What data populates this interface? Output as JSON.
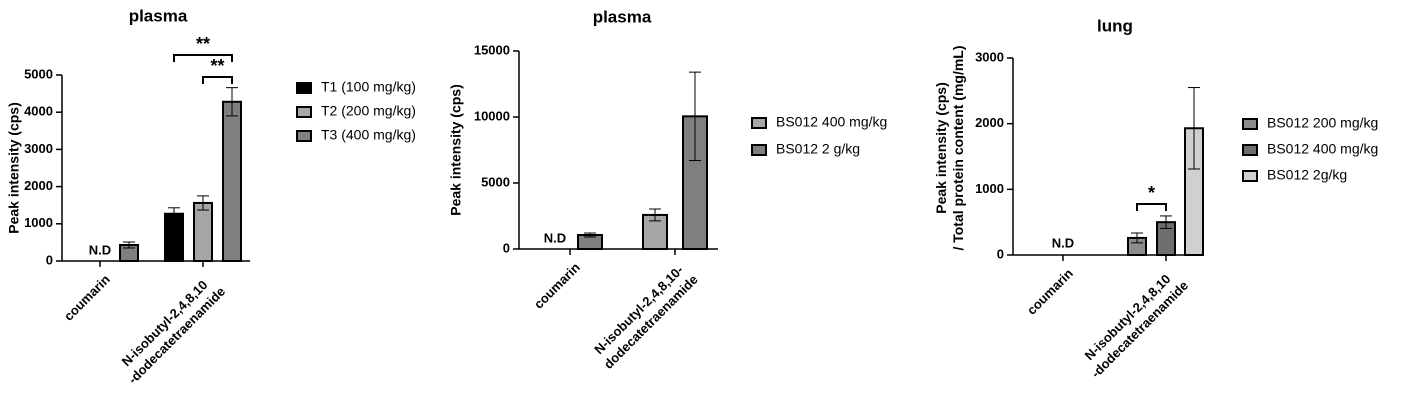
{
  "chart_data": [
    {
      "type": "bar",
      "title": "plasma",
      "y_label": "Peak intensity (cps)",
      "categories": [
        "coumarin",
        "N-isobutyl-2,4,8,10\n-dodecatetraenamide"
      ],
      "series": [
        {
          "name": "T1 (100 mg/kg)",
          "color": "#000000",
          "values": [
            null,
            1270
          ],
          "errors": [
            null,
            160
          ]
        },
        {
          "name": "T2 (200 mg/kg)",
          "color": "#a6a6a6",
          "values": [
            null,
            1560
          ],
          "errors": [
            null,
            190
          ]
        },
        {
          "name": "T3 (400 mg/kg)",
          "color": "#7f7f7f",
          "values": [
            430,
            4280
          ],
          "errors": [
            80,
            380
          ]
        }
      ],
      "ylim": [
        0,
        5000
      ],
      "yticks": [
        0,
        1000,
        2000,
        3000,
        4000,
        5000
      ],
      "annotations": [
        "N.D",
        "**",
        "**"
      ]
    },
    {
      "type": "bar",
      "title": "plasma",
      "y_label": "Peak intensity (cps)",
      "categories": [
        "coumarin",
        "N-isobutyl-2,4,8,10-\ndodecatetraenamide"
      ],
      "series": [
        {
          "name": "BS012 400 mg/kg",
          "color": "#a6a6a6",
          "values": [
            null,
            2580
          ],
          "errors": [
            null,
            450
          ]
        },
        {
          "name": "BS012 2 g/kg",
          "color": "#7f7f7f",
          "values": [
            1060,
            10050
          ],
          "errors": [
            150,
            3350
          ]
        }
      ],
      "ylim": [
        0,
        15000
      ],
      "yticks": [
        0,
        5000,
        10000,
        15000
      ],
      "annotations": [
        "N.D"
      ]
    },
    {
      "type": "bar",
      "title": "lung",
      "y_label": "Peak intensity (cps)\n/ Total protein content (mg/mL)",
      "categories": [
        "coumarin",
        "N-isobutyl-2,4,8,10\n-dodecatetraenamide"
      ],
      "series": [
        {
          "name": "BS012 200 mg/kg",
          "color": "#8c8c8c",
          "values": [
            null,
            260
          ],
          "errors": [
            null,
            75
          ]
        },
        {
          "name": "BS012 400 mg/kg",
          "color": "#6e6e6e",
          "values": [
            null,
            500
          ],
          "errors": [
            null,
            95
          ]
        },
        {
          "name": "BS012 2g/kg",
          "color": "#d0d0d0",
          "values": [
            null,
            1930
          ],
          "errors": [
            null,
            620
          ]
        }
      ],
      "ylim": [
        0,
        3000
      ],
      "yticks": [
        0,
        1000,
        2000,
        3000
      ],
      "annotations": [
        "N.D",
        "*"
      ]
    }
  ]
}
